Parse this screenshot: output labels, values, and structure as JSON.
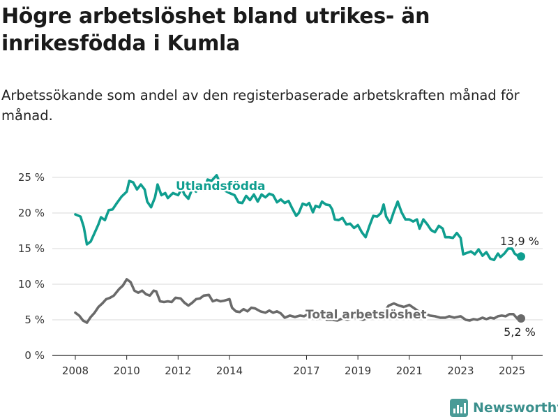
{
  "title": "Högre arbetslöshet bland utrikes- än inrikesfödda i Kumla",
  "subtitle": "Arbetssökande som andel av den registerbaserade arbetskraften månad för månad.",
  "brand": "Newsworthy",
  "chart_data": {
    "type": "line",
    "title": "Högre arbetslöshet bland utrikes- än inrikesfödda i Kumla",
    "subtitle": "Arbetssökande som andel av den registerbaserade arbetskraften månad för månad.",
    "xlabel": "",
    "ylabel": "",
    "xlim": [
      2007.9,
      2025.9
    ],
    "ylim": [
      0,
      25
    ],
    "x_ticks": [
      2008,
      2010,
      2012,
      2014,
      2017,
      2019,
      2021,
      2023,
      2025
    ],
    "y_ticks": [
      0,
      5,
      10,
      15,
      20,
      25
    ],
    "y_tick_labels": [
      "0 %",
      "5 %",
      "10 %",
      "15 %",
      "20 %",
      "25 %"
    ],
    "grid": "horizontal",
    "series": [
      {
        "name": "Utlandsfödda",
        "color": "#0f9e8f",
        "end_label": "13,9 %",
        "points": [
          [
            2008.0,
            19.8
          ],
          [
            2008.2,
            19.5
          ],
          [
            2008.33,
            18.0
          ],
          [
            2008.45,
            15.6
          ],
          [
            2008.6,
            16.0
          ],
          [
            2008.75,
            17.2
          ],
          [
            2008.9,
            18.4
          ],
          [
            2009.0,
            19.4
          ],
          [
            2009.15,
            19.0
          ],
          [
            2009.3,
            20.4
          ],
          [
            2009.45,
            20.5
          ],
          [
            2009.6,
            21.3
          ],
          [
            2009.8,
            22.3
          ],
          [
            2010.0,
            23.0
          ],
          [
            2010.1,
            24.5
          ],
          [
            2010.25,
            24.3
          ],
          [
            2010.4,
            23.3
          ],
          [
            2010.55,
            24.0
          ],
          [
            2010.7,
            23.3
          ],
          [
            2010.8,
            21.6
          ],
          [
            2010.95,
            20.8
          ],
          [
            2011.1,
            22.2
          ],
          [
            2011.2,
            24.0
          ],
          [
            2011.35,
            22.5
          ],
          [
            2011.5,
            22.8
          ],
          [
            2011.6,
            22.1
          ],
          [
            2011.8,
            22.8
          ],
          [
            2012.0,
            22.5
          ],
          [
            2012.15,
            23.4
          ],
          [
            2012.25,
            22.6
          ],
          [
            2012.4,
            22.0
          ],
          [
            2012.55,
            23.4
          ],
          [
            2012.7,
            23.0
          ],
          [
            2012.85,
            24.0
          ],
          [
            2013.0,
            23.2
          ],
          [
            2013.15,
            24.7
          ],
          [
            2013.3,
            24.5
          ],
          [
            2013.5,
            25.3
          ],
          [
            2013.65,
            24.0
          ],
          [
            2013.8,
            23.2
          ],
          [
            2014.0,
            22.8
          ],
          [
            2014.2,
            22.5
          ],
          [
            2014.35,
            21.5
          ],
          [
            2014.5,
            21.4
          ],
          [
            2014.65,
            22.4
          ],
          [
            2014.8,
            21.8
          ],
          [
            2014.95,
            22.6
          ],
          [
            2015.1,
            21.6
          ],
          [
            2015.25,
            22.6
          ],
          [
            2015.4,
            22.2
          ],
          [
            2015.55,
            22.7
          ],
          [
            2015.7,
            22.5
          ],
          [
            2015.85,
            21.5
          ],
          [
            2016.0,
            21.9
          ],
          [
            2016.15,
            21.4
          ],
          [
            2016.3,
            21.7
          ],
          [
            2016.45,
            20.6
          ],
          [
            2016.6,
            19.6
          ],
          [
            2016.7,
            20.0
          ],
          [
            2016.85,
            21.3
          ],
          [
            2017.0,
            21.1
          ],
          [
            2017.1,
            21.4
          ],
          [
            2017.25,
            20.1
          ],
          [
            2017.35,
            21.0
          ],
          [
            2017.5,
            20.8
          ],
          [
            2017.6,
            21.6
          ],
          [
            2017.75,
            21.2
          ],
          [
            2017.9,
            21.1
          ],
          [
            2018.0,
            20.5
          ],
          [
            2018.1,
            19.1
          ],
          [
            2018.25,
            19.0
          ],
          [
            2018.4,
            19.3
          ],
          [
            2018.55,
            18.4
          ],
          [
            2018.7,
            18.5
          ],
          [
            2018.85,
            17.9
          ],
          [
            2019.0,
            18.3
          ],
          [
            2019.15,
            17.3
          ],
          [
            2019.3,
            16.6
          ],
          [
            2019.45,
            18.2
          ],
          [
            2019.6,
            19.6
          ],
          [
            2019.75,
            19.5
          ],
          [
            2019.9,
            20.0
          ],
          [
            2020.0,
            21.2
          ],
          [
            2020.1,
            19.5
          ],
          [
            2020.25,
            18.6
          ],
          [
            2020.4,
            20.2
          ],
          [
            2020.55,
            21.6
          ],
          [
            2020.7,
            20.1
          ],
          [
            2020.85,
            19.1
          ],
          [
            2021.0,
            19.1
          ],
          [
            2021.15,
            18.8
          ],
          [
            2021.3,
            19.1
          ],
          [
            2021.4,
            17.8
          ],
          [
            2021.55,
            19.1
          ],
          [
            2021.7,
            18.4
          ],
          [
            2021.85,
            17.6
          ],
          [
            2022.0,
            17.3
          ],
          [
            2022.15,
            18.2
          ],
          [
            2022.3,
            17.8
          ],
          [
            2022.4,
            16.6
          ],
          [
            2022.55,
            16.6
          ],
          [
            2022.7,
            16.5
          ],
          [
            2022.85,
            17.2
          ],
          [
            2023.0,
            16.5
          ],
          [
            2023.1,
            14.2
          ],
          [
            2023.25,
            14.4
          ],
          [
            2023.4,
            14.6
          ],
          [
            2023.55,
            14.2
          ],
          [
            2023.7,
            14.9
          ],
          [
            2023.85,
            14.0
          ],
          [
            2024.0,
            14.5
          ],
          [
            2024.15,
            13.6
          ],
          [
            2024.3,
            13.4
          ],
          [
            2024.45,
            14.3
          ],
          [
            2024.55,
            13.8
          ],
          [
            2024.7,
            14.3
          ],
          [
            2024.85,
            15.0
          ],
          [
            2025.0,
            15.0
          ],
          [
            2025.1,
            14.3
          ],
          [
            2025.25,
            13.9
          ],
          [
            2025.35,
            13.9
          ]
        ]
      },
      {
        "name": "Total arbetslöshet",
        "color": "#6a6a6a",
        "end_label": "5,2 %",
        "points": [
          [
            2008.0,
            6.0
          ],
          [
            2008.15,
            5.6
          ],
          [
            2008.3,
            4.9
          ],
          [
            2008.45,
            4.6
          ],
          [
            2008.6,
            5.4
          ],
          [
            2008.75,
            6.0
          ],
          [
            2008.9,
            6.8
          ],
          [
            2009.05,
            7.3
          ],
          [
            2009.2,
            7.9
          ],
          [
            2009.35,
            8.1
          ],
          [
            2009.5,
            8.4
          ],
          [
            2009.7,
            9.3
          ],
          [
            2009.85,
            9.8
          ],
          [
            2010.0,
            10.7
          ],
          [
            2010.15,
            10.3
          ],
          [
            2010.3,
            9.1
          ],
          [
            2010.45,
            8.8
          ],
          [
            2010.6,
            9.1
          ],
          [
            2010.75,
            8.6
          ],
          [
            2010.9,
            8.4
          ],
          [
            2011.05,
            9.1
          ],
          [
            2011.15,
            9.0
          ],
          [
            2011.3,
            7.6
          ],
          [
            2011.45,
            7.5
          ],
          [
            2011.6,
            7.6
          ],
          [
            2011.75,
            7.5
          ],
          [
            2011.9,
            8.1
          ],
          [
            2012.1,
            8.0
          ],
          [
            2012.25,
            7.4
          ],
          [
            2012.4,
            7.0
          ],
          [
            2012.55,
            7.4
          ],
          [
            2012.7,
            7.9
          ],
          [
            2012.85,
            8.0
          ],
          [
            2013.0,
            8.4
          ],
          [
            2013.2,
            8.5
          ],
          [
            2013.35,
            7.6
          ],
          [
            2013.5,
            7.8
          ],
          [
            2013.65,
            7.6
          ],
          [
            2013.8,
            7.7
          ],
          [
            2014.0,
            7.9
          ],
          [
            2014.1,
            6.7
          ],
          [
            2014.25,
            6.2
          ],
          [
            2014.4,
            6.1
          ],
          [
            2014.55,
            6.5
          ],
          [
            2014.7,
            6.2
          ],
          [
            2014.85,
            6.7
          ],
          [
            2015.0,
            6.6
          ],
          [
            2015.2,
            6.2
          ],
          [
            2015.4,
            6.0
          ],
          [
            2015.55,
            6.3
          ],
          [
            2015.7,
            6.0
          ],
          [
            2015.85,
            6.2
          ],
          [
            2016.0,
            5.9
          ],
          [
            2016.15,
            5.3
          ],
          [
            2016.35,
            5.6
          ],
          [
            2016.55,
            5.4
          ],
          [
            2016.75,
            5.6
          ],
          [
            2016.9,
            5.5
          ],
          [
            2017.0,
            5.7
          ],
          [
            2017.2,
            5.3
          ],
          [
            2017.4,
            5.1
          ],
          [
            2017.6,
            5.4
          ],
          [
            2017.8,
            5.0
          ],
          [
            2018.0,
            5.0
          ],
          [
            2018.2,
            4.9
          ],
          [
            2018.4,
            5.2
          ],
          [
            2018.6,
            5.0
          ],
          [
            2018.8,
            5.3
          ],
          [
            2019.0,
            5.2
          ],
          [
            2019.2,
            5.0
          ],
          [
            2019.4,
            5.3
          ],
          [
            2019.6,
            5.6
          ],
          [
            2019.8,
            5.9
          ],
          [
            2020.0,
            6.0
          ],
          [
            2020.2,
            7.0
          ],
          [
            2020.4,
            7.3
          ],
          [
            2020.6,
            7.0
          ],
          [
            2020.8,
            6.8
          ],
          [
            2021.0,
            7.1
          ],
          [
            2021.2,
            6.6
          ],
          [
            2021.4,
            6.1
          ],
          [
            2021.6,
            5.9
          ],
          [
            2021.8,
            5.6
          ],
          [
            2022.0,
            5.5
          ],
          [
            2022.2,
            5.3
          ],
          [
            2022.4,
            5.3
          ],
          [
            2022.55,
            5.5
          ],
          [
            2022.75,
            5.3
          ],
          [
            2023.0,
            5.5
          ],
          [
            2023.2,
            5.0
          ],
          [
            2023.35,
            4.9
          ],
          [
            2023.5,
            5.1
          ],
          [
            2023.65,
            5.0
          ],
          [
            2023.85,
            5.3
          ],
          [
            2024.0,
            5.1
          ],
          [
            2024.15,
            5.3
          ],
          [
            2024.3,
            5.2
          ],
          [
            2024.45,
            5.5
          ],
          [
            2024.6,
            5.6
          ],
          [
            2024.75,
            5.5
          ],
          [
            2024.9,
            5.8
          ],
          [
            2025.05,
            5.8
          ],
          [
            2025.2,
            5.2
          ],
          [
            2025.35,
            5.2
          ]
        ]
      }
    ]
  }
}
